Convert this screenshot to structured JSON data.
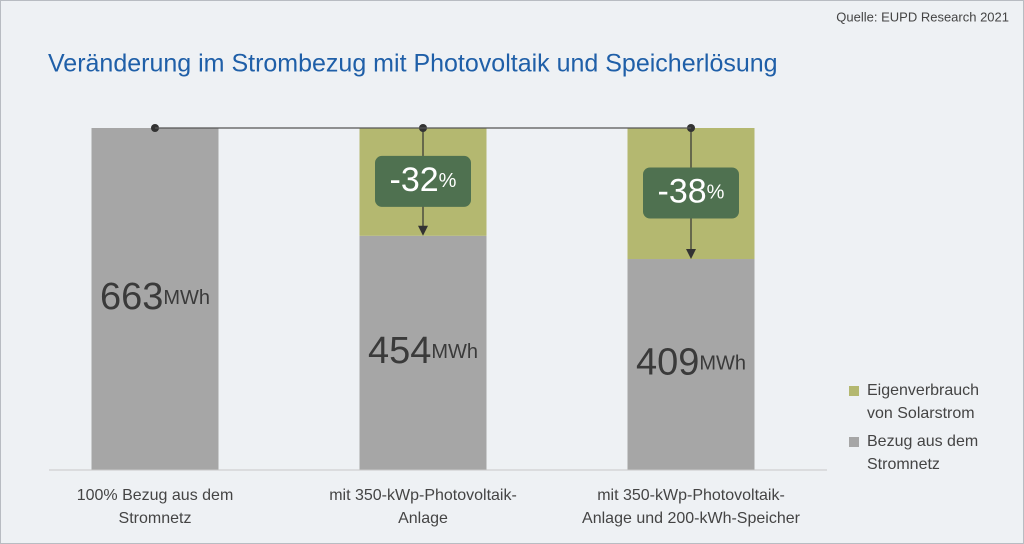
{
  "chart_data": {
    "type": "stacked_bar",
    "source": "Quelle: EUPD Research 2021",
    "title": "Veränderung im Strombezug mit Photovoltaik und Speicherlösung",
    "categories": [
      "100% Bezug aus dem\nStromnetz",
      "mit 350-kWp-Photovoltaik-\nAnlage",
      "mit 350-kWp-Photovoltaik-\nAnlage und 200-kWh-Speicher"
    ],
    "series": [
      {
        "name": "Bezug aus dem\nStromnetz",
        "color": "#a6a6a6",
        "values": [
          663,
          454,
          409
        ]
      },
      {
        "name": "Eigenverbrauch\nvon Solarstrom",
        "color": "#b4b870",
        "values": [
          0,
          209,
          254
        ]
      }
    ],
    "value_unit": "MWh",
    "reductions": [
      null,
      -32,
      -38
    ],
    "reduction_unit": "%",
    "reduction_color": "#4f7150",
    "ylim": [
      0,
      663
    ],
    "legend": "right"
  }
}
